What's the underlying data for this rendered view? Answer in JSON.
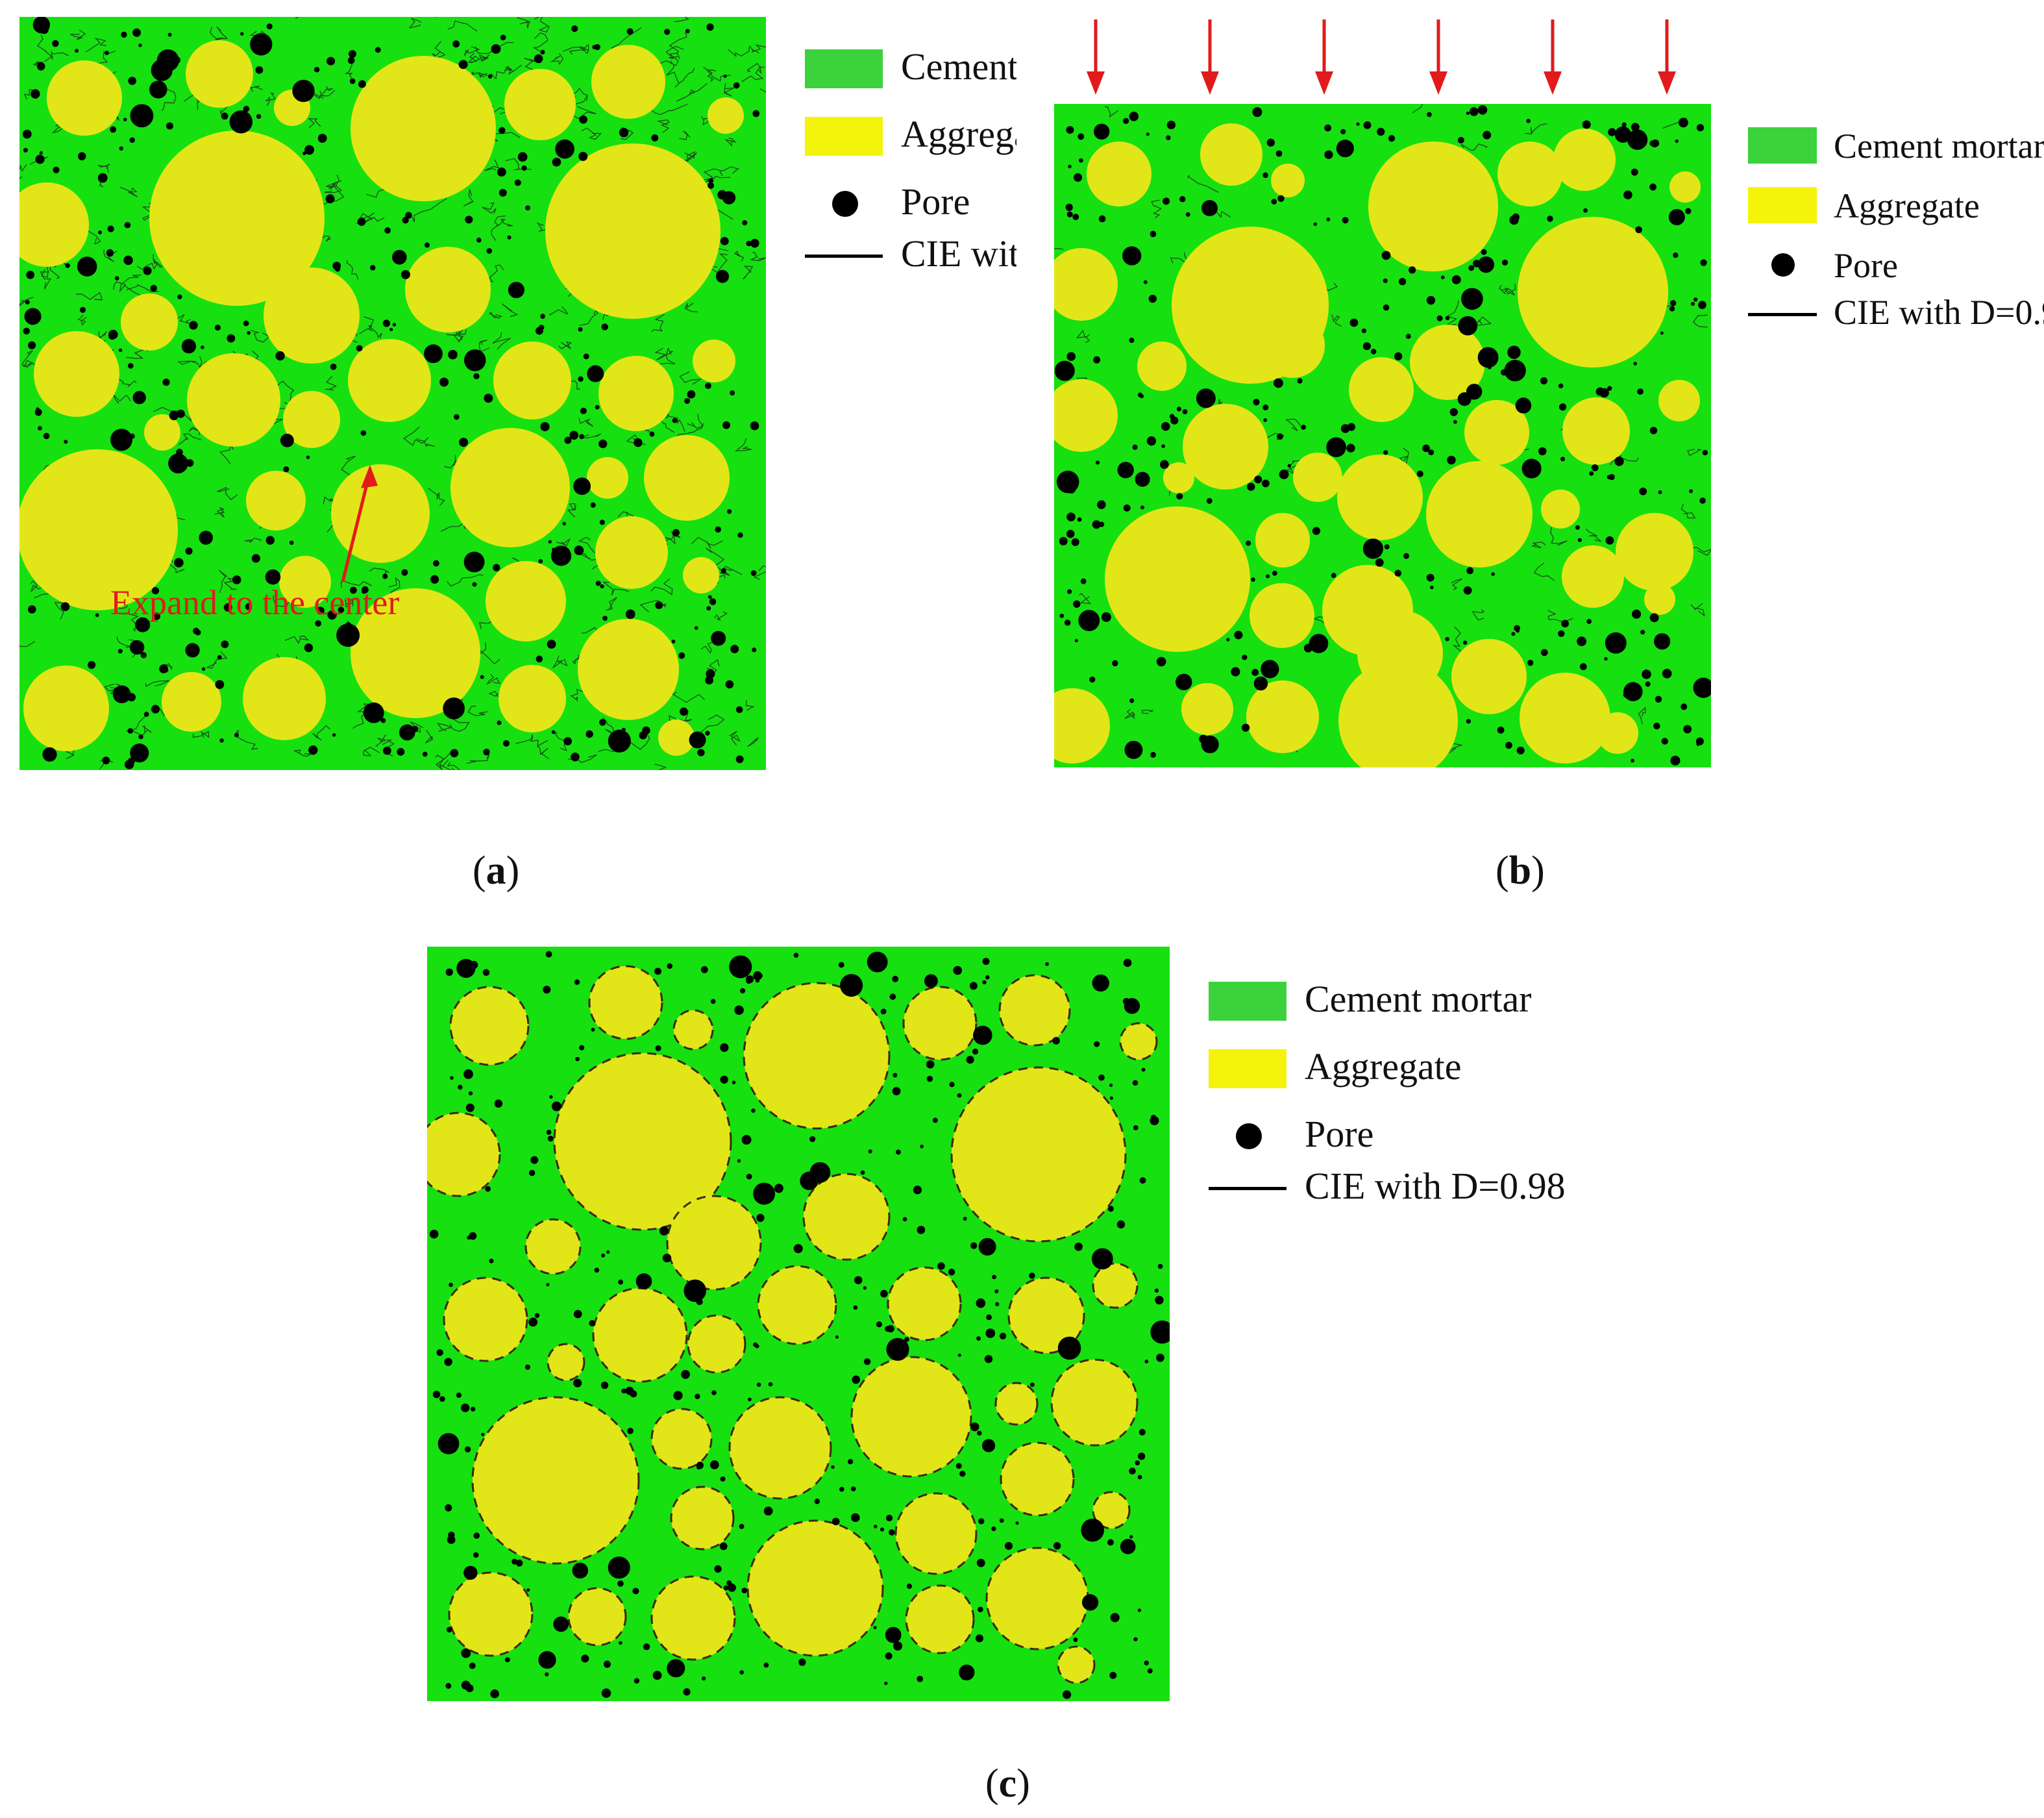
{
  "colors": {
    "mortar_fill": "#16e010",
    "legend_mortar": "#3bd23b",
    "aggregate_fill": "#e2e618",
    "legend_aggregate": "#f4f40a",
    "pore": "#000000",
    "arrow": "#e11b1b"
  },
  "legend": {
    "mortar": "Cement mortar",
    "aggregate": "Aggregate",
    "pore": "Pore",
    "cie": "CIE with D=0.98"
  },
  "panel_a": {
    "caption_letter": "a",
    "annotation": "Expand to the center"
  },
  "panel_b": {
    "caption_letter": "b"
  },
  "panel_c": {
    "caption_letter": "c"
  }
}
